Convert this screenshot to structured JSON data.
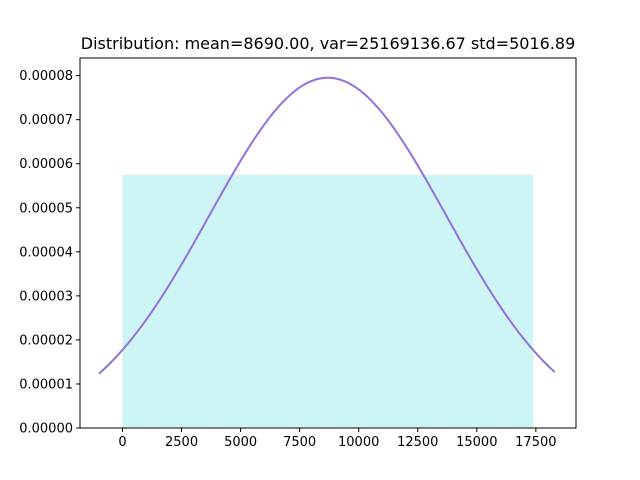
{
  "chart_data": {
    "type": "histogram",
    "title": "Distribution: mean=8690.00, var=25169136.67 std=5016.89",
    "xlabel": "",
    "ylabel": "",
    "xlim": [
      -1800,
      19200
    ],
    "ylim": [
      0,
      8.4e-05
    ],
    "x_ticks": [
      0,
      2500,
      5000,
      7500,
      10000,
      12500,
      15000,
      17500
    ],
    "x_tick_labels": [
      "0",
      "2500",
      "5000",
      "7500",
      "10000",
      "12500",
      "15000",
      "17500"
    ],
    "y_ticks": [
      0,
      1e-05,
      2e-05,
      3e-05,
      4e-05,
      5e-05,
      6e-05,
      7e-05,
      8e-05
    ],
    "y_tick_labels": [
      "0.00000",
      "0.00001",
      "0.00002",
      "0.00003",
      "0.00004",
      "0.00005",
      "0.00006",
      "0.00007",
      "0.00008"
    ],
    "histogram": {
      "range": [
        0,
        17380
      ],
      "bins": 20,
      "density": 5.75e-05,
      "color": "#aeeeee",
      "opacity": 0.6
    },
    "curve": {
      "type": "normal_pdf",
      "mean": 8690.0,
      "std": 5016.89,
      "x_range": [
        -1000,
        18300
      ],
      "color": "#9370db",
      "line_width": 2
    },
    "grid": false
  }
}
